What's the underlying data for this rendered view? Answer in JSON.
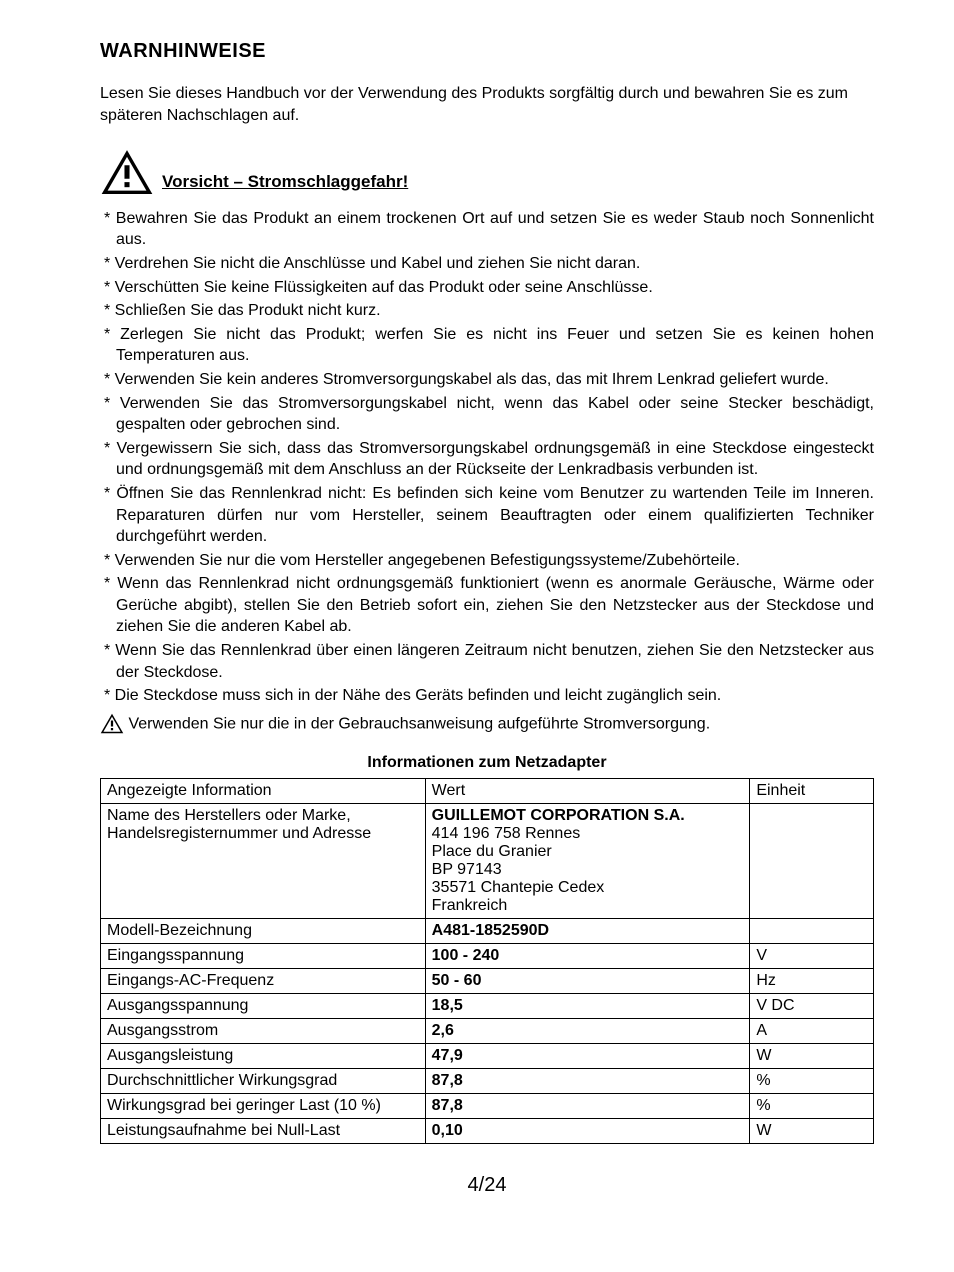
{
  "heading": "WARNHINWEISE",
  "intro": "Lesen Sie dieses Handbuch vor der Verwendung des Produkts sorgfältig durch und bewahren Sie es zum späteren Nachschlagen auf.",
  "caution_label": "Vorsicht – Stromschlaggefahr!",
  "bullets": [
    "Bewahren Sie das Produkt an einem trockenen Ort auf und setzen Sie es weder Staub noch Sonnenlicht aus.",
    "Verdrehen Sie nicht die Anschlüsse und Kabel und ziehen Sie nicht daran.",
    "Verschütten Sie keine Flüssigkeiten auf das Produkt oder seine Anschlüsse.",
    "Schließen Sie das Produkt nicht kurz.",
    "Zerlegen Sie nicht das Produkt; werfen Sie es nicht ins Feuer und setzen Sie es keinen hohen Temperaturen aus.",
    "Verwenden Sie kein anderes Stromversorgungskabel als das, das mit Ihrem Lenkrad geliefert wurde.",
    "Verwenden Sie das Stromversorgungskabel nicht, wenn das Kabel oder seine Stecker beschädigt, gespalten oder gebrochen sind.",
    "Vergewissern Sie sich, dass das Stromversorgungskabel ordnungsgemäß in eine Steckdose eingesteckt und ordnungsgemäß mit dem Anschluss an der Rückseite der Lenkradbasis verbunden ist.",
    "Öffnen Sie das Rennlenkrad nicht: Es befinden sich keine vom Benutzer zu wartenden Teile im Inneren. Reparaturen dürfen nur vom Hersteller, seinem Beauftragten oder einem qualifizierten Techniker durchgeführt werden.",
    "Verwenden Sie nur die vom Hersteller angegebenen Befestigungssysteme/Zubehörteile.",
    "Wenn das Rennlenkrad nicht ordnungsgemäß funktioniert (wenn es anormale Geräusche, Wärme oder Gerüche abgibt), stellen Sie den Betrieb sofort ein, ziehen Sie den Netzstecker aus der Steckdose und ziehen Sie die anderen Kabel ab.",
    "Wenn Sie das Rennlenkrad über einen längeren Zeitraum nicht benutzen, ziehen Sie den Netzstecker aus der Steckdose.",
    "Die Steckdose muss sich in der Nähe des Geräts befinden und leicht zugänglich sein."
  ],
  "final_warning": " Verwenden Sie nur die in der Gebrauchsanweisung aufgeführte Stromversorgung.",
  "table": {
    "title": "Informationen zum Netzadapter",
    "headers": {
      "info": "Angezeigte Information",
      "value": "Wert",
      "unit": "Einheit"
    },
    "rows": [
      {
        "info": "Name des Herstellers oder Marke, Handelsregisternummer und Adresse",
        "value_lines": [
          "GUILLEMOT CORPORATION S.A.",
          "414 196 758 Rennes",
          "Place du Granier",
          "BP 97143",
          "35571 Chantepie Cedex",
          "Frankreich"
        ],
        "bold_lines": [
          0
        ],
        "unit": ""
      },
      {
        "info": "Modell-Bezeichnung",
        "value": "A481-1852590D",
        "unit": ""
      },
      {
        "info": "Eingangsspannung",
        "value": "100 - 240",
        "unit": "V"
      },
      {
        "info": "Eingangs-AC-Frequenz",
        "value": "50 - 60",
        "unit": "Hz"
      },
      {
        "info": "Ausgangsspannung",
        "value": "18,5",
        "unit": "V DC"
      },
      {
        "info": "Ausgangsstrom",
        "value": "2,6",
        "unit": "A"
      },
      {
        "info": "Ausgangsleistung",
        "value": "47,9",
        "unit": "W"
      },
      {
        "info": "Durchschnittlicher Wirkungsgrad",
        "value": "87,8",
        "unit": "%"
      },
      {
        "info": "Wirkungsgrad bei geringer Last (10 %)",
        "value": "87,8",
        "unit": "%"
      },
      {
        "info": "Leistungsaufnahme bei Null-Last",
        "value": "0,10",
        "unit": "W"
      }
    ]
  },
  "page_number": "4/24",
  "colors": {
    "text": "#000000",
    "background": "#ffffff",
    "border": "#000000"
  },
  "typography": {
    "body_font": "Arial",
    "body_size_pt": 12,
    "heading_size_pt": 15,
    "heading_weight": "bold"
  }
}
